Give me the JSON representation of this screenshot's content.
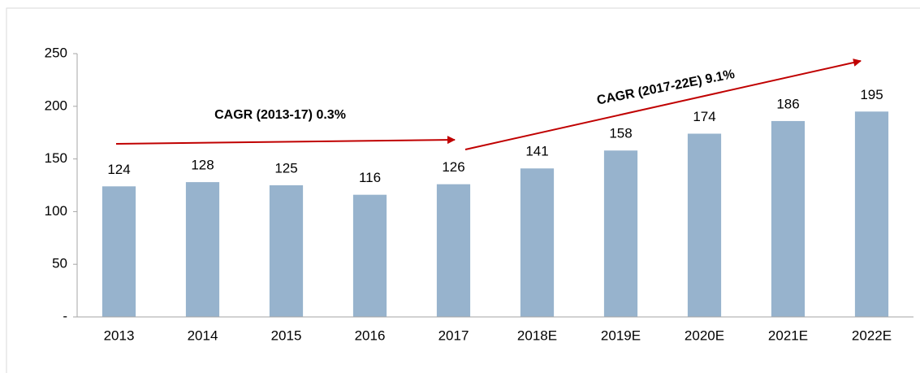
{
  "chart_data": {
    "type": "bar",
    "categories": [
      "2013",
      "2014",
      "2015",
      "2016",
      "2017",
      "2018E",
      "2019E",
      "2020E",
      "2021E",
      "2022E"
    ],
    "values": [
      124,
      128,
      125,
      116,
      126,
      141,
      158,
      174,
      186,
      195
    ],
    "color": "#97b3cd",
    "ylim": [
      0,
      250
    ],
    "yticks": [
      {
        "value": 0,
        "label": "-"
      },
      50,
      100,
      150,
      200,
      250
    ],
    "grid": false,
    "annotations": [
      "CAGR (2013-17) 0.3%",
      "CAGR (2017-22E) 9.1%"
    ]
  }
}
